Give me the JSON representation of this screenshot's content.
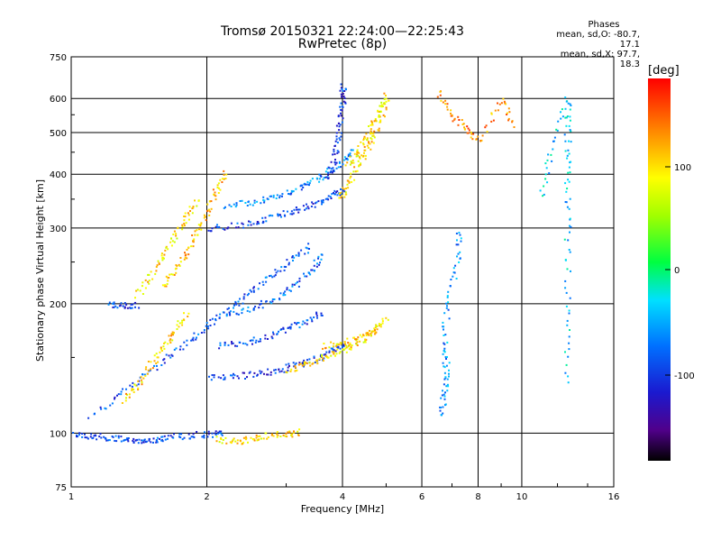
{
  "header": {
    "title_line1": "Tromsø 20150321 22:24:00—22:25:43",
    "title_line2": "RwPretec (8p)"
  },
  "phase_stats": {
    "title": "Phases",
    "line_o": "mean, sd,O: -80.7, 17.1",
    "line_x": "mean, sd,X:  97.7, 18.3"
  },
  "colorbar": {
    "unit_label": "[deg]",
    "ticks": [
      "100",
      "0",
      "-100"
    ],
    "range": [
      -180,
      180
    ]
  },
  "chart_data": {
    "type": "scatter",
    "xlabel": "Frequency [MHz]",
    "ylabel": "Stationary phase Virtual Height [km]",
    "x_scale": "log2",
    "y_scale": "log",
    "xlim": [
      1,
      16
    ],
    "ylim": [
      75,
      750
    ],
    "x_ticks": [
      "1",
      "2",
      "4",
      "6",
      "8",
      "10",
      "16"
    ],
    "y_ticks": [
      "75",
      "100",
      "200",
      "300",
      "400",
      "500",
      "600",
      "750"
    ],
    "grid": true,
    "color_encoding": "phase (deg)",
    "traces": [
      {
        "phase": -90,
        "points": [
          [
            1.0,
            100
          ],
          [
            1.1,
            99
          ],
          [
            1.2,
            98
          ],
          [
            1.3,
            97
          ],
          [
            1.4,
            96
          ],
          [
            1.5,
            97
          ],
          [
            1.6,
            98
          ],
          [
            1.8,
            99
          ],
          [
            2.0,
            100
          ],
          [
            2.2,
            100
          ]
        ]
      },
      {
        "phase": 100,
        "points": [
          [
            2.1,
            97
          ],
          [
            2.3,
            96
          ],
          [
            2.5,
            97
          ],
          [
            2.7,
            99
          ],
          [
            3.0,
            100
          ],
          [
            3.2,
            101
          ]
        ]
      },
      {
        "phase": -95,
        "points": [
          [
            1.2,
            200
          ],
          [
            1.3,
            199
          ],
          [
            1.4,
            199
          ]
        ]
      },
      {
        "phase": -85,
        "points": [
          [
            1.1,
            110
          ],
          [
            1.3,
            125
          ],
          [
            1.5,
            140
          ],
          [
            1.7,
            155
          ],
          [
            1.9,
            170
          ],
          [
            2.1,
            185
          ],
          [
            2.3,
            200
          ],
          [
            2.5,
            215
          ],
          [
            2.8,
            235
          ],
          [
            3.1,
            255
          ],
          [
            3.4,
            275
          ]
        ]
      },
      {
        "phase": -100,
        "points": [
          [
            2.0,
            135
          ],
          [
            2.3,
            136
          ],
          [
            2.6,
            138
          ],
          [
            2.9,
            141
          ],
          [
            3.2,
            145
          ],
          [
            3.5,
            150
          ],
          [
            3.8,
            156
          ],
          [
            4.0,
            162
          ]
        ]
      },
      {
        "phase": 95,
        "points": [
          [
            3.0,
            140
          ],
          [
            3.3,
            145
          ],
          [
            3.6,
            150
          ],
          [
            3.9,
            155
          ],
          [
            4.2,
            160
          ],
          [
            4.5,
            168
          ],
          [
            4.8,
            178
          ]
        ]
      },
      {
        "phase": -90,
        "points": [
          [
            2.1,
            160
          ],
          [
            2.4,
            163
          ],
          [
            2.7,
            168
          ],
          [
            3.0,
            175
          ],
          [
            3.3,
            183
          ],
          [
            3.6,
            192
          ]
        ]
      },
      {
        "phase": 105,
        "points": [
          [
            3.6,
            160
          ],
          [
            4.0,
            163
          ],
          [
            4.4,
            168
          ],
          [
            4.7,
            175
          ],
          [
            5.0,
            185
          ]
        ]
      },
      {
        "phase": -80,
        "points": [
          [
            2.2,
            190
          ],
          [
            2.5,
            195
          ],
          [
            2.8,
            205
          ],
          [
            3.1,
            220
          ],
          [
            3.4,
            240
          ],
          [
            3.6,
            262
          ]
        ]
      },
      {
        "phase": -95,
        "points": [
          [
            2.0,
            300
          ],
          [
            2.3,
            305
          ],
          [
            2.6,
            312
          ],
          [
            2.9,
            322
          ],
          [
            3.2,
            334
          ],
          [
            3.5,
            346
          ],
          [
            3.8,
            358
          ],
          [
            4.0,
            370
          ]
        ]
      },
      {
        "phase": -70,
        "points": [
          [
            2.2,
            340
          ],
          [
            2.5,
            346
          ],
          [
            2.8,
            355
          ],
          [
            3.1,
            368
          ],
          [
            3.4,
            385
          ],
          [
            3.7,
            405
          ],
          [
            4.0,
            430
          ],
          [
            4.2,
            460
          ]
        ]
      },
      {
        "phase": 110,
        "points": [
          [
            1.6,
            220
          ],
          [
            1.7,
            240
          ],
          [
            1.8,
            265
          ],
          [
            1.9,
            295
          ],
          [
            2.0,
            330
          ],
          [
            2.1,
            370
          ],
          [
            2.2,
            405
          ]
        ]
      },
      {
        "phase": 95,
        "points": [
          [
            1.4,
            210
          ],
          [
            1.5,
            235
          ],
          [
            1.6,
            262
          ],
          [
            1.7,
            290
          ],
          [
            1.8,
            320
          ],
          [
            1.9,
            350
          ]
        ]
      },
      {
        "phase": 100,
        "points": [
          [
            3.9,
            350
          ],
          [
            4.1,
            380
          ],
          [
            4.3,
            420
          ],
          [
            4.5,
            460
          ],
          [
            4.7,
            500
          ],
          [
            4.9,
            560
          ],
          [
            5.0,
            620
          ]
        ]
      },
      {
        "phase": 95,
        "points": [
          [
            4.1,
            420
          ],
          [
            4.3,
            450
          ],
          [
            4.5,
            490
          ],
          [
            4.7,
            540
          ],
          [
            4.9,
            600
          ]
        ]
      },
      {
        "phase": -100,
        "points": [
          [
            3.7,
            390
          ],
          [
            3.8,
            430
          ],
          [
            3.9,
            480
          ],
          [
            3.95,
            540
          ],
          [
            4.0,
            600
          ],
          [
            4.0,
            650
          ]
        ]
      },
      {
        "phase": 105,
        "points": [
          [
            1.3,
            120
          ],
          [
            1.4,
            130
          ],
          [
            1.5,
            145
          ],
          [
            1.6,
            160
          ],
          [
            1.7,
            175
          ],
          [
            1.8,
            190
          ]
        ]
      },
      {
        "phase": -60,
        "points": [
          [
            6.6,
            110
          ],
          [
            6.7,
            125
          ],
          [
            6.8,
            140
          ],
          [
            6.7,
            160
          ],
          [
            6.8,
            200
          ],
          [
            7.2,
            250
          ],
          [
            7.2,
            300
          ]
        ]
      },
      {
        "phase": 130,
        "points": [
          [
            6.5,
            620
          ],
          [
            7.0,
            550
          ],
          [
            7.5,
            510
          ],
          [
            8.0,
            480
          ],
          [
            9.0,
            600
          ],
          [
            9.5,
            520
          ]
        ]
      },
      {
        "phase": -40,
        "points": [
          [
            12.6,
            130
          ],
          [
            12.6,
            200
          ],
          [
            12.6,
            300
          ],
          [
            12.6,
            400
          ],
          [
            12.6,
            500
          ],
          [
            12.6,
            600
          ],
          [
            11.5,
            450
          ],
          [
            11.0,
            350
          ]
        ]
      }
    ]
  }
}
